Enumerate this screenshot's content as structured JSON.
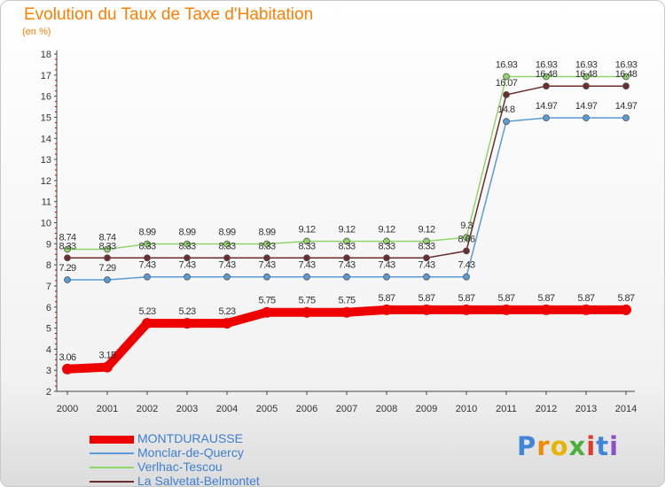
{
  "header": {
    "title": "Evolution du Taux de Taxe d'Habitation",
    "subtitle": "(en %)"
  },
  "colors": {
    "title": "#ff7f00",
    "legend_text": "#3f7fd0",
    "axis": "#444444",
    "tick_red": "#cc0000"
  },
  "chart_data": {
    "type": "line",
    "x": [
      "2000",
      "2001",
      "2002",
      "2003",
      "2004",
      "2005",
      "2006",
      "2007",
      "2008",
      "2009",
      "2010",
      "2011",
      "2012",
      "2013",
      "2014"
    ],
    "ylim": [
      2,
      18
    ],
    "yticks": [
      2,
      3,
      4,
      5,
      6,
      7,
      8,
      9,
      10,
      11,
      12,
      13,
      14,
      15,
      16,
      17,
      18
    ],
    "grid": false,
    "legend_position": "bottom-left",
    "series": [
      {
        "name": "MONTDURAUSSE",
        "color": "#ee0000",
        "values": [
          3.06,
          3.15,
          5.23,
          5.23,
          5.23,
          5.75,
          5.75,
          5.75,
          5.87,
          5.87,
          5.87,
          5.87,
          5.87,
          5.87,
          5.87
        ],
        "labels": [
          "3.06",
          "3.15",
          "5.23",
          "5.23",
          "5.23",
          "5.75",
          "5.75",
          "5.75",
          "5.87",
          "5.87",
          "5.87",
          "5.87",
          "5.87",
          "5.87",
          "5.87"
        ]
      },
      {
        "name": "Monclar-de-Quercy",
        "color": "#5a9bd5",
        "values": [
          7.29,
          7.29,
          7.43,
          7.43,
          7.43,
          7.43,
          7.43,
          7.43,
          7.43,
          7.43,
          7.43,
          14.8,
          14.97,
          14.97,
          14.97
        ],
        "labels": [
          "7.29",
          "7.29",
          "7.43",
          "7.43",
          "7.43",
          "7.43",
          "7.43",
          "7.43",
          "7.43",
          "7.43",
          "7.43",
          "14.8",
          "14.97",
          "14.97",
          "14.97"
        ]
      },
      {
        "name": "Verlhac-Tescou",
        "color": "#8fd66a",
        "values": [
          8.74,
          8.74,
          8.99,
          8.99,
          8.99,
          8.99,
          9.12,
          9.12,
          9.12,
          9.12,
          9.3,
          16.93,
          16.93,
          16.93,
          16.93
        ],
        "labels": [
          "8.74",
          "8.74",
          "8.99",
          "8.99",
          "8.99",
          "8.99",
          "9.12",
          "9.12",
          "9.12",
          "9.12",
          "9.3",
          "16.93",
          "16.93",
          "16.93",
          "16.93"
        ]
      },
      {
        "name": "La Salvetat-Belmontet",
        "color": "#6b2d2d",
        "values": [
          8.33,
          8.33,
          8.33,
          8.33,
          8.33,
          8.33,
          8.33,
          8.33,
          8.33,
          8.33,
          8.66,
          16.07,
          16.48,
          16.48,
          16.48
        ],
        "labels": [
          "8.33",
          "8.33",
          "8.33",
          "8.33",
          "8.33",
          "8.33",
          "8.33",
          "8.33",
          "8.33",
          "8.33",
          "8.66",
          "16.07",
          "16.48",
          "16.48",
          "16.48"
        ]
      }
    ]
  },
  "brand": {
    "letters": [
      {
        "ch": "P",
        "color": "#3e86d8"
      },
      {
        "ch": "r",
        "color": "#f08c00"
      },
      {
        "ch": "o",
        "color": "#e8b400"
      },
      {
        "ch": "x",
        "color": "#4caf3a"
      },
      {
        "ch": "i",
        "color": "#e23b2e"
      },
      {
        "ch": "t",
        "color": "#3e86d8"
      },
      {
        "ch": "i",
        "color": "#8c4fc7"
      }
    ]
  }
}
